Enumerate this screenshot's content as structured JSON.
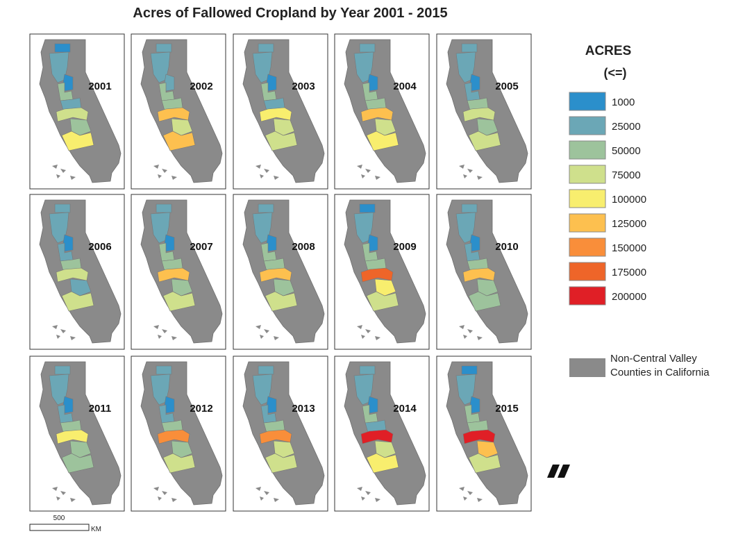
{
  "title": "Acres of Fallowed Cropland by Year 2001 - 2015",
  "legend": {
    "title": "ACRES",
    "subtitle": "(<=)",
    "classes": [
      {
        "value": 1000,
        "color": "#2b8fcb"
      },
      {
        "value": 25000,
        "color": "#6ba7b6"
      },
      {
        "value": 50000,
        "color": "#9dc39c"
      },
      {
        "value": 75000,
        "color": "#cfe08c"
      },
      {
        "value": 100000,
        "color": "#f8ee6e"
      },
      {
        "value": 125000,
        "color": "#fdc04f"
      },
      {
        "value": 150000,
        "color": "#f98e3a"
      },
      {
        "value": 175000,
        "color": "#ee6529"
      },
      {
        "value": 200000,
        "color": "#e01f26"
      }
    ],
    "other": {
      "label": [
        "Non-Central Valley",
        "Counties in California"
      ],
      "color": "#8a8a8a"
    }
  },
  "maps": [
    {
      "year": "2001",
      "counties": [
        1000,
        25000,
        1000,
        50000,
        25000,
        75000,
        50000,
        100000
      ]
    },
    {
      "year": "2002",
      "counties": [
        25000,
        25000,
        25000,
        50000,
        50000,
        125000,
        75000,
        125000
      ]
    },
    {
      "year": "2003",
      "counties": [
        25000,
        25000,
        1000,
        50000,
        25000,
        100000,
        75000,
        75000
      ]
    },
    {
      "year": "2004",
      "counties": [
        25000,
        25000,
        1000,
        50000,
        50000,
        125000,
        75000,
        100000
      ]
    },
    {
      "year": "2005",
      "counties": [
        25000,
        25000,
        1000,
        25000,
        50000,
        75000,
        50000,
        75000
      ]
    },
    {
      "year": "2006",
      "counties": [
        25000,
        25000,
        1000,
        25000,
        50000,
        75000,
        25000,
        75000
      ]
    },
    {
      "year": "2007",
      "counties": [
        25000,
        25000,
        1000,
        50000,
        50000,
        125000,
        50000,
        75000
      ]
    },
    {
      "year": "2008",
      "counties": [
        25000,
        25000,
        1000,
        50000,
        50000,
        125000,
        50000,
        75000
      ]
    },
    {
      "year": "2009",
      "counties": [
        1000,
        25000,
        1000,
        50000,
        50000,
        175000,
        100000,
        75000
      ]
    },
    {
      "year": "2010",
      "counties": [
        25000,
        25000,
        1000,
        25000,
        50000,
        125000,
        50000,
        50000
      ]
    },
    {
      "year": "2011",
      "counties": [
        25000,
        25000,
        1000,
        25000,
        50000,
        100000,
        50000,
        50000
      ]
    },
    {
      "year": "2012",
      "counties": [
        25000,
        25000,
        1000,
        25000,
        50000,
        150000,
        50000,
        75000
      ]
    },
    {
      "year": "2013",
      "counties": [
        25000,
        25000,
        1000,
        25000,
        50000,
        150000,
        75000,
        75000
      ]
    },
    {
      "year": "2014",
      "counties": [
        25000,
        25000,
        1000,
        50000,
        25000,
        200000,
        75000,
        100000
      ]
    },
    {
      "year": "2015",
      "counties": [
        1000,
        25000,
        1000,
        50000,
        50000,
        200000,
        125000,
        75000
      ]
    }
  ],
  "scale": {
    "distance": "500",
    "unit": "KM"
  }
}
